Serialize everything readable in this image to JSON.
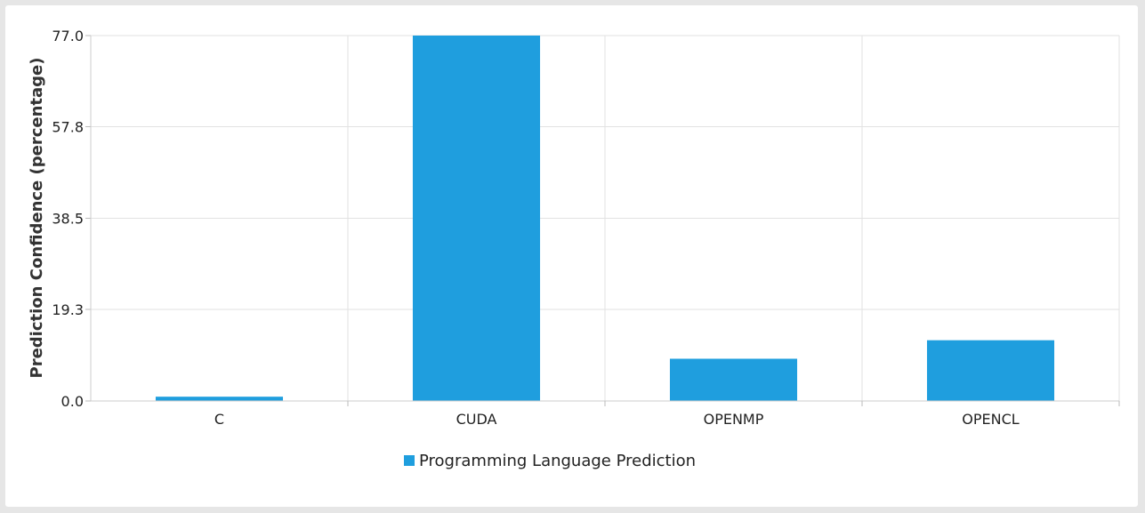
{
  "chart_data": {
    "type": "bar",
    "categories": [
      "C",
      "CUDA",
      "OPENMP",
      "OPENCL"
    ],
    "series": [
      {
        "name": "Programming Language Prediction",
        "values": [
          0.9,
          77.0,
          8.9,
          12.8
        ],
        "color": "#1f9ede"
      }
    ],
    "title": "",
    "xlabel": "",
    "ylabel": "Prediction Confidence (percentage)",
    "ylim": [
      0,
      77.0
    ],
    "yticks": [
      "0.0",
      "19.3",
      "38.5",
      "57.8",
      "77.0"
    ],
    "grid": true,
    "legend_position": "bottom-center"
  }
}
